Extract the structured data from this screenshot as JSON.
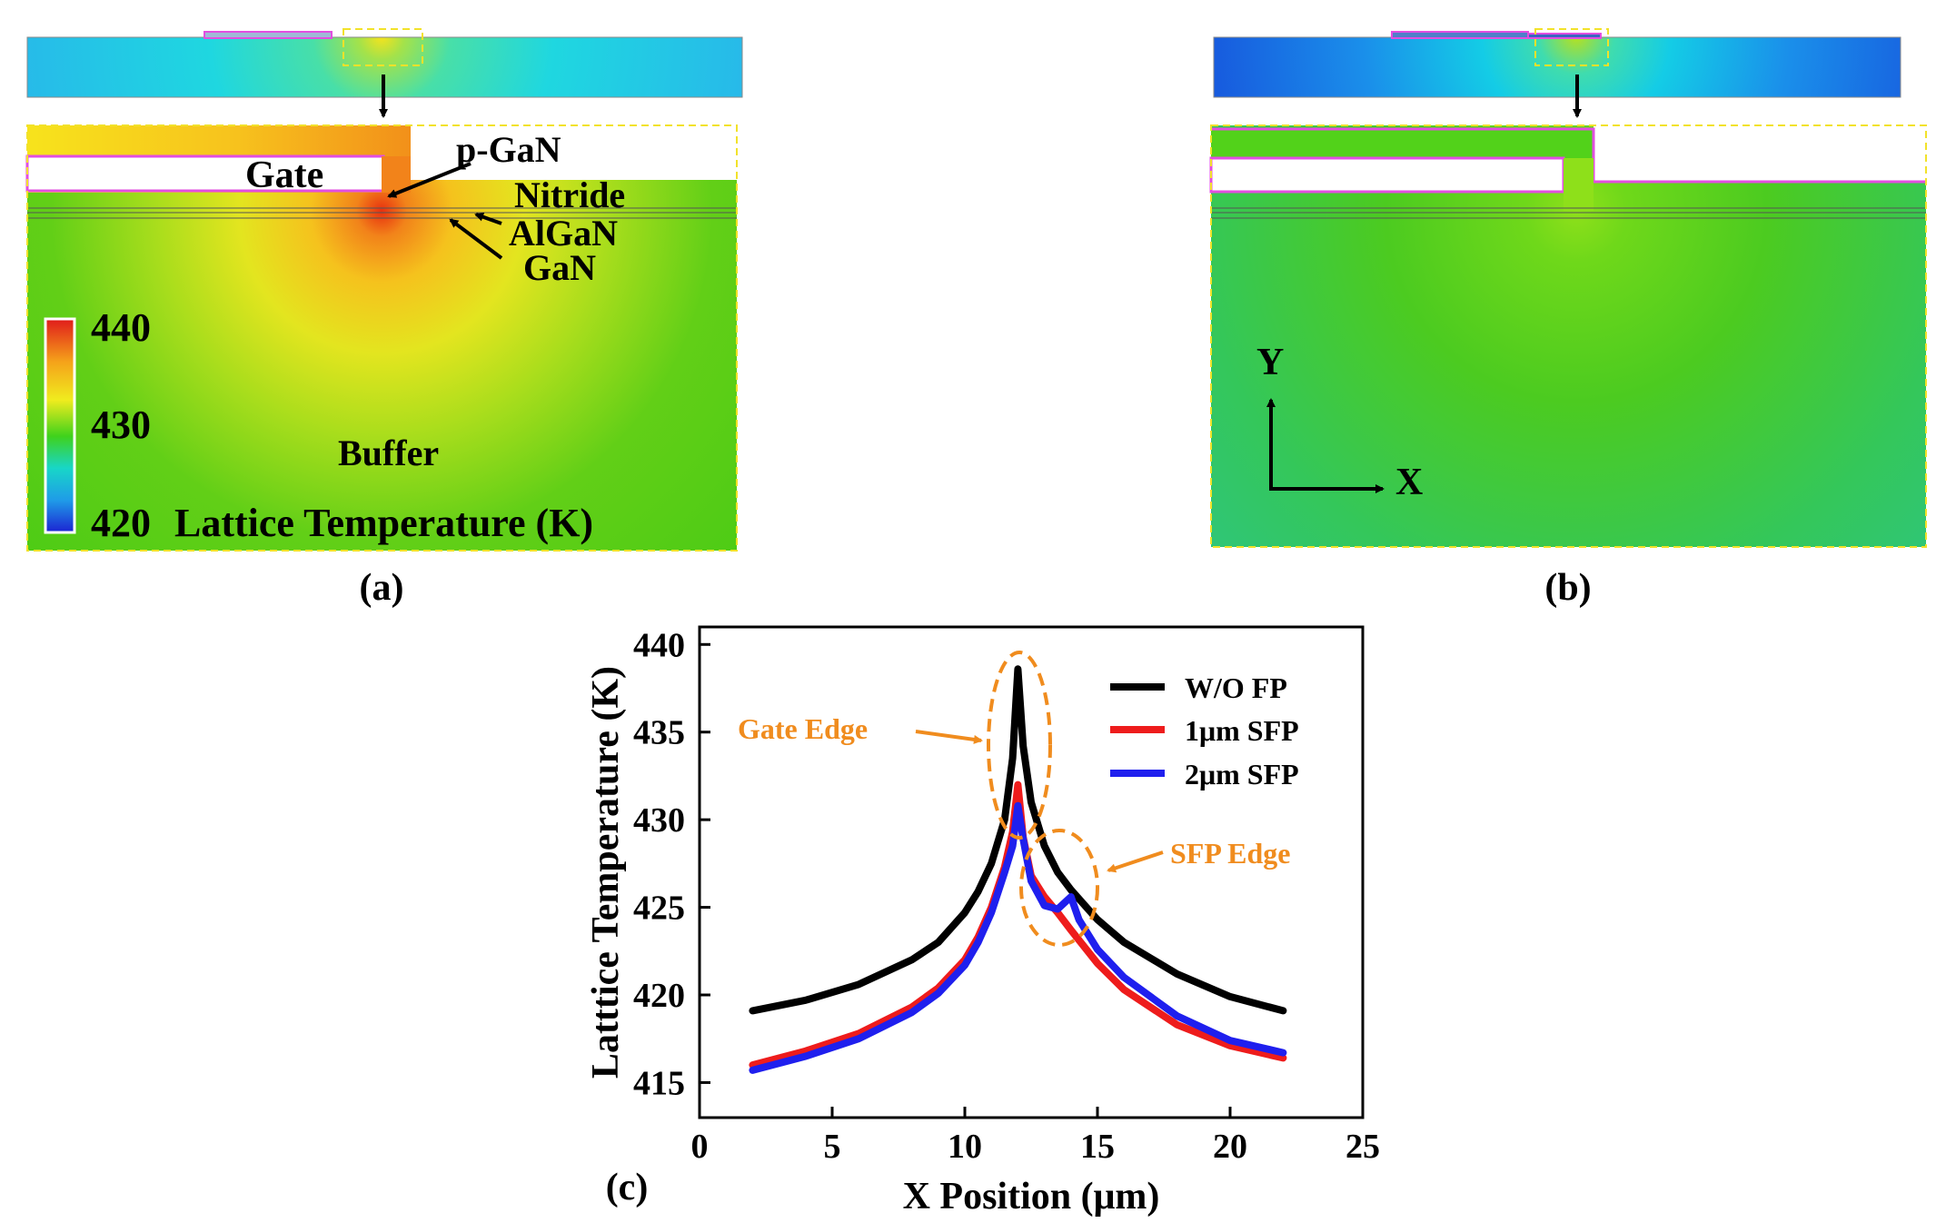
{
  "panel_a": {
    "caption": "(a)",
    "labels": {
      "gate": "Gate",
      "pgan": "p-GaN",
      "nitride": "Nitride",
      "algan": "AlGaN",
      "gan": "GaN",
      "buffer": "Buffer"
    },
    "colorbar": {
      "max_label": "440",
      "mid_label": "430",
      "min_label": "420",
      "title": "Lattice Temperature (K)"
    }
  },
  "panel_b": {
    "caption": "(b)",
    "axes": {
      "y_label": "Y",
      "x_label": "X"
    }
  },
  "panel_c": {
    "caption": "(c)"
  },
  "annotations": {
    "gate_edge": "Gate Edge",
    "sfp_edge": "SFP Edge"
  },
  "colors": {
    "annotation": "#f08c1e",
    "dashed_box": "#f2e22a",
    "gate_outline": "#e24ee0",
    "w_o_fp": "#000000",
    "sfp_1um": "#ee1c1c",
    "sfp_2um": "#1f1fee"
  },
  "chart_data": {
    "type": "line",
    "xlabel": "X Position (μm)",
    "ylabel": "Latttice Temperature (K)",
    "xlim": [
      0,
      25
    ],
    "ylim": [
      413,
      441
    ],
    "xticks": [
      0,
      5,
      10,
      15,
      20,
      25
    ],
    "yticks": [
      415,
      420,
      425,
      430,
      435,
      440
    ],
    "legend_position": "top-right",
    "grid": false,
    "series": [
      {
        "name": "W/O FP",
        "color": "#000000",
        "x": [
          2,
          4,
          6,
          8,
          9,
          10,
          10.5,
          11,
          11.5,
          11.8,
          12,
          12.2,
          12.5,
          13,
          13.5,
          14,
          15,
          16,
          18,
          20,
          22
        ],
        "y": [
          419.1,
          419.7,
          420.6,
          422.0,
          423.0,
          424.7,
          425.9,
          427.5,
          430.0,
          433.5,
          438.6,
          434.2,
          431.0,
          428.5,
          427.0,
          426.0,
          424.3,
          423.0,
          421.2,
          419.9,
          419.1
        ]
      },
      {
        "name": "1μm SFP",
        "color": "#ee1c1c",
        "x": [
          2,
          4,
          6,
          8,
          9,
          10,
          10.5,
          11,
          11.5,
          11.8,
          12,
          12.2,
          12.5,
          13,
          13.5,
          14,
          15,
          16,
          18,
          20,
          22
        ],
        "y": [
          416.0,
          416.8,
          417.8,
          419.3,
          420.4,
          422.0,
          423.3,
          425.0,
          427.3,
          429.3,
          432.0,
          429.0,
          426.8,
          425.6,
          424.7,
          423.7,
          421.8,
          420.3,
          418.3,
          417.1,
          416.4
        ]
      },
      {
        "name": "2μm SFP",
        "color": "#1f1fee",
        "x": [
          2,
          4,
          6,
          8,
          9,
          10,
          10.5,
          11,
          11.5,
          11.8,
          12,
          12.2,
          12.5,
          13,
          13.5,
          14,
          14.3,
          15,
          16,
          18,
          20,
          22
        ],
        "y": [
          415.7,
          416.5,
          417.5,
          419.0,
          420.1,
          421.7,
          423.0,
          424.7,
          427.0,
          428.5,
          430.8,
          428.9,
          426.5,
          425.1,
          424.9,
          425.6,
          424.3,
          422.6,
          421.0,
          418.8,
          417.4,
          416.7
        ]
      }
    ]
  }
}
